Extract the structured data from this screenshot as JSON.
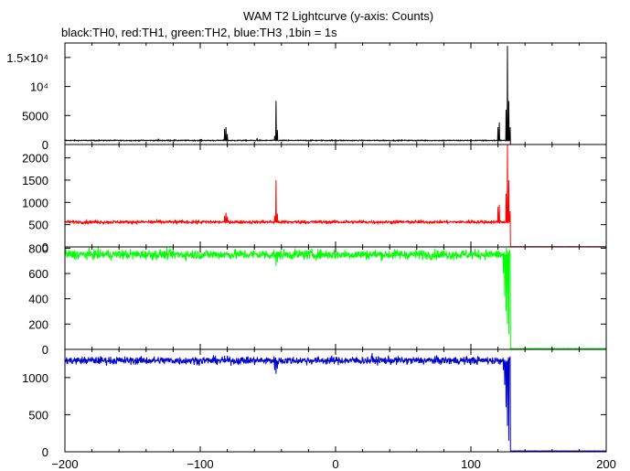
{
  "chart_data": {
    "type": "line",
    "title": "WAM T2 Lightcurve (y-axis: Counts)",
    "subtitle": "black:TH0, red:TH1, green:TH2, blue:TH3 ,1bin = 1s",
    "xlim": [
      -200,
      200
    ],
    "x_ticks": [
      -200,
      -100,
      0,
      100,
      200
    ],
    "x_tick_labels": [
      "−200",
      "−100",
      "0",
      "100",
      "200"
    ],
    "grid": false,
    "panels": [
      {
        "series_name": "TH0",
        "color": "#000000",
        "ylim": [
          0,
          17500
        ],
        "y_ticks": [
          0,
          5000,
          10000,
          15000
        ],
        "y_tick_labels": [
          "0",
          "5000",
          "10⁴",
          "1.5×10⁴"
        ],
        "baseline": 700,
        "noise": 60,
        "drop_level": 5,
        "features": [
          {
            "x": -131,
            "v": 1000
          },
          {
            "x": -82,
            "v": 2700
          },
          {
            "x": -81,
            "v": 3000
          },
          {
            "x": -80,
            "v": 1800
          },
          {
            "x": -58,
            "v": 1100
          },
          {
            "x": -45,
            "v": 1500
          },
          {
            "x": -44,
            "v": 7500
          },
          {
            "x": -43,
            "v": 2500
          },
          {
            "x": 120,
            "v": 3000
          },
          {
            "x": 121,
            "v": 3800
          },
          {
            "x": 126,
            "v": 6000
          },
          {
            "x": 127,
            "v": 17000
          },
          {
            "x": 128,
            "v": 7500
          },
          {
            "x": 129,
            "v": 3000
          }
        ]
      },
      {
        "series_name": "TH1",
        "color": "#ff0000",
        "ylim": [
          0,
          2300
        ],
        "y_ticks": [
          0,
          500,
          1000,
          1500,
          2000
        ],
        "y_tick_labels": [
          "0",
          "500",
          "1000",
          "1500",
          "2000"
        ],
        "baseline": 560,
        "noise": 25,
        "drop_level": 5,
        "features": [
          {
            "x": -82,
            "v": 700
          },
          {
            "x": -81,
            "v": 770
          },
          {
            "x": -80,
            "v": 680
          },
          {
            "x": -45,
            "v": 700
          },
          {
            "x": -44,
            "v": 1500
          },
          {
            "x": -43,
            "v": 750
          },
          {
            "x": 120,
            "v": 900
          },
          {
            "x": 121,
            "v": 950
          },
          {
            "x": 126,
            "v": 1200
          },
          {
            "x": 127,
            "v": 2300
          },
          {
            "x": 128,
            "v": 1500
          },
          {
            "x": 129,
            "v": 800
          }
        ]
      },
      {
        "series_name": "TH2",
        "color": "#00ff00",
        "ylim": [
          0,
          810
        ],
        "y_ticks": [
          0,
          200,
          400,
          600,
          800
        ],
        "y_tick_labels": [
          "0",
          "200",
          "400",
          "600",
          "800"
        ],
        "baseline": 750,
        "noise": 28,
        "drop_level": 5,
        "features": [
          {
            "x": -44,
            "v": 660
          },
          {
            "x": -43,
            "v": 690
          },
          {
            "x": 122,
            "v": 730
          },
          {
            "x": 124,
            "v": 600
          },
          {
            "x": 125,
            "v": 420
          },
          {
            "x": 126,
            "v": 300
          },
          {
            "x": 127,
            "v": 200
          },
          {
            "x": 128,
            "v": 120
          }
        ]
      },
      {
        "series_name": "TH3",
        "color": "#0000cc",
        "ylim": [
          0,
          1380
        ],
        "y_ticks": [
          0,
          500,
          1000
        ],
        "y_tick_labels": [
          "0",
          "500",
          "1000"
        ],
        "baseline": 1230,
        "noise": 38,
        "drop_level": 10,
        "features": [
          {
            "x": -45,
            "v": 1100
          },
          {
            "x": -44,
            "v": 1050
          },
          {
            "x": -43,
            "v": 1120
          },
          {
            "x": 27,
            "v": 1330
          },
          {
            "x": 122,
            "v": 1250
          },
          {
            "x": 124,
            "v": 1100
          },
          {
            "x": 125,
            "v": 900
          },
          {
            "x": 126,
            "v": 600
          },
          {
            "x": 127,
            "v": 350
          },
          {
            "x": 128,
            "v": 150
          }
        ]
      }
    ],
    "drop_start_x": 129
  }
}
